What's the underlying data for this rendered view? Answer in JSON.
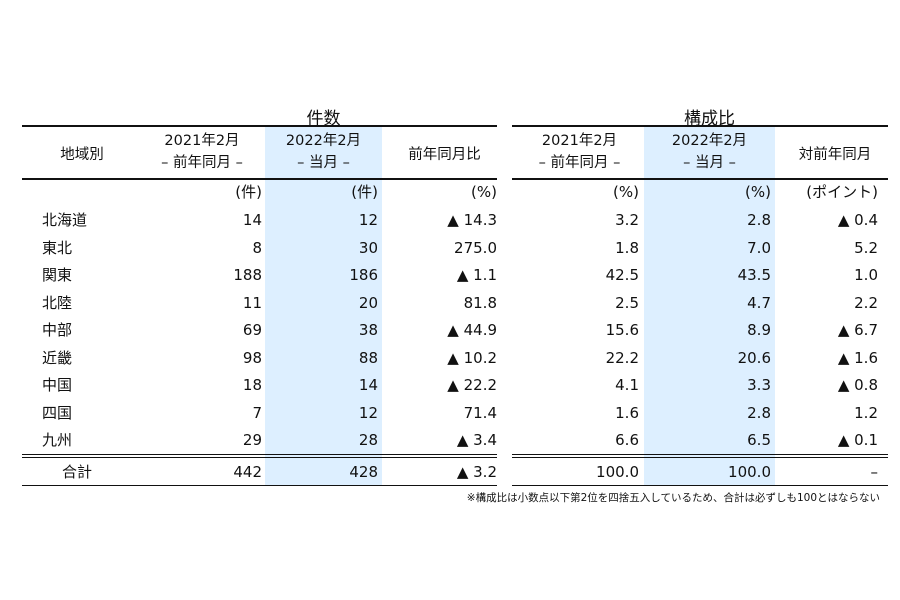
{
  "groups": {
    "count": "件数",
    "ratio": "構成比"
  },
  "headers": {
    "region": "地域別",
    "prev_year": "2021年2月",
    "prev_sub": "– 前年同月 –",
    "curr_year": "2022年2月",
    "curr_sub": "– 当月 –",
    "yoy_ratio": "前年同月比",
    "ratio_prev_year": "2021年2月",
    "ratio_prev_sub": "– 前年同月 –",
    "ratio_curr_year": "2022年2月",
    "ratio_curr_sub": "– 当月 –",
    "ratio_diff": "対前年同月"
  },
  "units": [
    "(件)",
    "(件)",
    "(%)",
    "(%)",
    "(%)",
    "(ポイント)"
  ],
  "rows": [
    [
      "北海道",
      "14",
      "12",
      "▲ 14.3",
      "3.2",
      "2.8",
      "▲ 0.4"
    ],
    [
      "東北",
      "8",
      "30",
      "275.0",
      "1.8",
      "7.0",
      "5.2"
    ],
    [
      "関東",
      "188",
      "186",
      "▲ 1.1",
      "42.5",
      "43.5",
      "1.0"
    ],
    [
      "北陸",
      "11",
      "20",
      "81.8",
      "2.5",
      "4.7",
      "2.2"
    ],
    [
      "中部",
      "69",
      "38",
      "▲ 44.9",
      "15.6",
      "8.9",
      "▲ 6.7"
    ],
    [
      "近畿",
      "98",
      "88",
      "▲ 10.2",
      "22.2",
      "20.6",
      "▲ 1.6"
    ],
    [
      "中国",
      "18",
      "14",
      "▲ 22.2",
      "4.1",
      "3.3",
      "▲ 0.8"
    ],
    [
      "四国",
      "7",
      "12",
      "71.4",
      "1.6",
      "2.8",
      "1.2"
    ],
    [
      "九州",
      "29",
      "28",
      "▲ 3.4",
      "6.6",
      "6.5",
      "▲ 0.1"
    ]
  ],
  "total": [
    "合計",
    "442",
    "428",
    "▲ 3.2",
    "100.0",
    "100.0",
    "–"
  ],
  "note": "※構成比は小数点以下第2位を四捨五入しているため、合計は必ずしも100とはならない",
  "colors": {
    "highlight": "#ddefff"
  }
}
